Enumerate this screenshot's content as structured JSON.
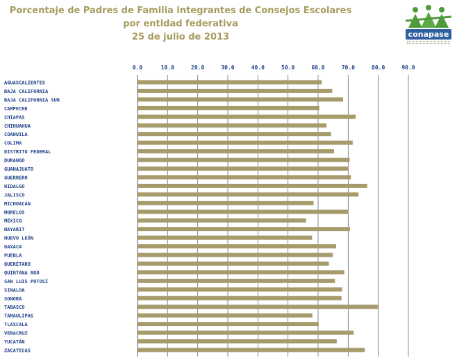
{
  "header": {
    "title_line1": "Porcentaje de Padres de Familia integrantes de Consejos Escolares",
    "title_line2": "por entidad federativa",
    "title_line3": "25 de julio de 2013"
  },
  "logo": {
    "wordmark": "conapase",
    "colors": {
      "primary": "#2f5f9e",
      "green": "#4f9a3a"
    }
  },
  "chart_data": {
    "type": "bar",
    "orientation": "horizontal",
    "title": "Porcentaje de Padres de Familia integrantes de Consejos Escolares por entidad federativa 25 de julio de 2013",
    "xlim": [
      0,
      90
    ],
    "x_ticks": [
      "0.0",
      "10.0",
      "20.0",
      "30.0",
      "40.0",
      "50.0",
      "60.0",
      "70.0",
      "80.0",
      "90.0"
    ],
    "x_tick_values": [
      0,
      10,
      20,
      30,
      40,
      50,
      60,
      70,
      80,
      90
    ],
    "grid": true,
    "bar_color": "#a69b6b",
    "categories": [
      "AGUASCALIENTES",
      "BAJA CALIFORNIA",
      "BAJA CALIFORNIA SUR",
      "CAMPECHE",
      "CHIAPAS",
      "CHIHUAHUA",
      "COAHUILA",
      "COLIMA",
      "DISTRITO FEDERAL",
      "DURANGO",
      "GUANAJUATO",
      "GUERRERO",
      "HIDALGO",
      "JALISCO",
      "MICHOACÁN",
      "MORELOS",
      "MÉXICO",
      "NAYARIT",
      "NUEVO LEÓN",
      "OAXACA",
      "PUEBLA",
      "QUERÉTARO",
      "QUINTANA ROO",
      "SAN LUIS POTOSÍ",
      "SINALOA",
      "SONORA",
      "TABASCO",
      "TAMAULIPAS",
      "TLAXCALA",
      "VERACRUZ",
      "YUCATÁN",
      "ZACATECAS"
    ],
    "values": [
      61.2,
      64.7,
      68.3,
      60.4,
      72.5,
      62.8,
      64.3,
      71.5,
      65.3,
      70.5,
      70.0,
      70.9,
      76.3,
      73.4,
      58.5,
      70.1,
      56.0,
      70.6,
      58.0,
      66.0,
      64.9,
      63.6,
      68.7,
      65.6,
      68.0,
      67.8,
      80.0,
      58.1,
      60.2,
      71.8,
      66.2,
      75.5
    ]
  }
}
